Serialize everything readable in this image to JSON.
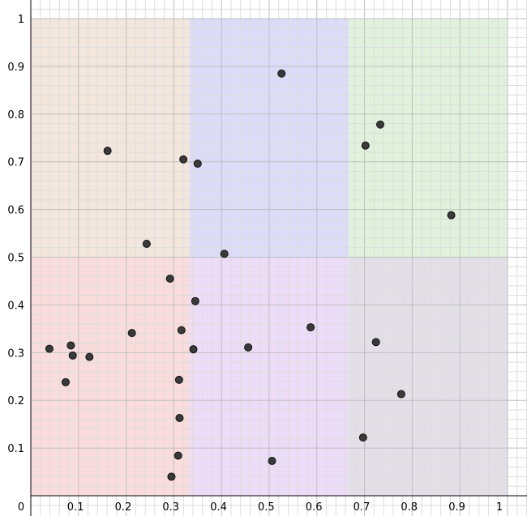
{
  "chart_data": {
    "type": "scatter",
    "xlim": [
      0,
      1
    ],
    "ylim": [
      0,
      1
    ],
    "grid": true,
    "x_ticks": [
      {
        "value": 0,
        "label": "0"
      },
      {
        "value": 0.1,
        "label": "0.1"
      },
      {
        "value": 0.2,
        "label": "0.2"
      },
      {
        "value": 0.3,
        "label": "0.3"
      },
      {
        "value": 0.4,
        "label": "0.4"
      },
      {
        "value": 0.5,
        "label": "0.5"
      },
      {
        "value": 0.6,
        "label": "0.6"
      },
      {
        "value": 0.7,
        "label": "0.7"
      },
      {
        "value": 0.8,
        "label": "0.8"
      },
      {
        "value": 0.9,
        "label": "0.9"
      },
      {
        "value": 1,
        "label": "1"
      }
    ],
    "y_ticks": [
      {
        "value": 0.1,
        "label": "0.1"
      },
      {
        "value": 0.2,
        "label": "0.2"
      },
      {
        "value": 0.3,
        "label": "0.3"
      },
      {
        "value": 0.4,
        "label": "0.4"
      },
      {
        "value": 0.5,
        "label": "0.5"
      },
      {
        "value": 0.6,
        "label": "0.6"
      },
      {
        "value": 0.7,
        "label": "0.7"
      },
      {
        "value": 0.8,
        "label": "0.8"
      },
      {
        "value": 0.9,
        "label": "0.9"
      },
      {
        "value": 1,
        "label": "1"
      }
    ],
    "regions": [
      {
        "x": [
          0,
          0.333
        ],
        "y": [
          0.5,
          1
        ],
        "color": "#f3e6dc"
      },
      {
        "x": [
          0.333,
          0.667
        ],
        "y": [
          0.5,
          1
        ],
        "color": "#dcdcf8"
      },
      {
        "x": [
          0.667,
          1
        ],
        "y": [
          0.5,
          1
        ],
        "color": "#e0f2dc"
      },
      {
        "x": [
          0,
          0.333
        ],
        "y": [
          0,
          0.5
        ],
        "color": "#fbdcdc"
      },
      {
        "x": [
          0.333,
          0.667
        ],
        "y": [
          0,
          0.5
        ],
        "color": "#ecdcf8"
      },
      {
        "x": [
          0.667,
          1
        ],
        "y": [
          0,
          0.5
        ],
        "color": "#e2e0e6"
      }
    ],
    "point_color": "#3a3a3a",
    "points": [
      {
        "x": 0.526,
        "y": 0.885
      },
      {
        "x": 0.733,
        "y": 0.778
      },
      {
        "x": 0.702,
        "y": 0.734
      },
      {
        "x": 0.161,
        "y": 0.723
      },
      {
        "x": 0.32,
        "y": 0.705
      },
      {
        "x": 0.35,
        "y": 0.696
      },
      {
        "x": 0.882,
        "y": 0.588
      },
      {
        "x": 0.243,
        "y": 0.528
      },
      {
        "x": 0.406,
        "y": 0.507
      },
      {
        "x": 0.292,
        "y": 0.455
      },
      {
        "x": 0.345,
        "y": 0.408
      },
      {
        "x": 0.587,
        "y": 0.353
      },
      {
        "x": 0.316,
        "y": 0.347
      },
      {
        "x": 0.212,
        "y": 0.341
      },
      {
        "x": 0.724,
        "y": 0.322
      },
      {
        "x": 0.084,
        "y": 0.315
      },
      {
        "x": 0.456,
        "y": 0.311
      },
      {
        "x": 0.039,
        "y": 0.308
      },
      {
        "x": 0.341,
        "y": 0.307
      },
      {
        "x": 0.088,
        "y": 0.294
      },
      {
        "x": 0.123,
        "y": 0.291
      },
      {
        "x": 0.311,
        "y": 0.243
      },
      {
        "x": 0.073,
        "y": 0.238
      },
      {
        "x": 0.777,
        "y": 0.213
      },
      {
        "x": 0.312,
        "y": 0.163
      },
      {
        "x": 0.697,
        "y": 0.122
      },
      {
        "x": 0.309,
        "y": 0.084
      },
      {
        "x": 0.506,
        "y": 0.073
      },
      {
        "x": 0.295,
        "y": 0.04
      }
    ]
  }
}
